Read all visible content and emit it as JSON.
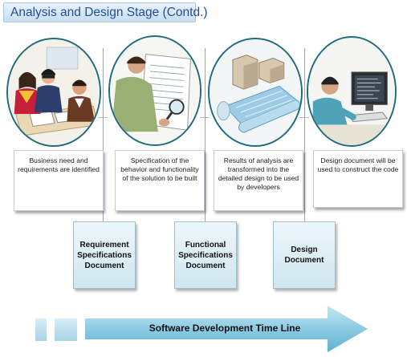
{
  "title": "Analysis and Design Stage (Contd.)",
  "stages": [
    {
      "illustration": "team-meeting-icon",
      "description": "Business need and requirements are identified",
      "document": "Requirement Specifications Document"
    },
    {
      "illustration": "magnifier-document-icon",
      "description": "Specification of the behavior and functionality of the solution to be built",
      "document": "Functional Specifications Document"
    },
    {
      "illustration": "blueprint-model-icon",
      "description": "Results of analysis are transformed into the detailed design to be used by developers",
      "document": "Design Document"
    },
    {
      "illustration": "developer-computer-icon",
      "description": "Design document will be used to construct the code",
      "document": ""
    }
  ],
  "timeline": {
    "label": "Software Development Time Line"
  },
  "colors": {
    "title_text": "#1f4e9a",
    "circle_border": "#1d6b7c",
    "arrow": "#5fb1d1"
  }
}
